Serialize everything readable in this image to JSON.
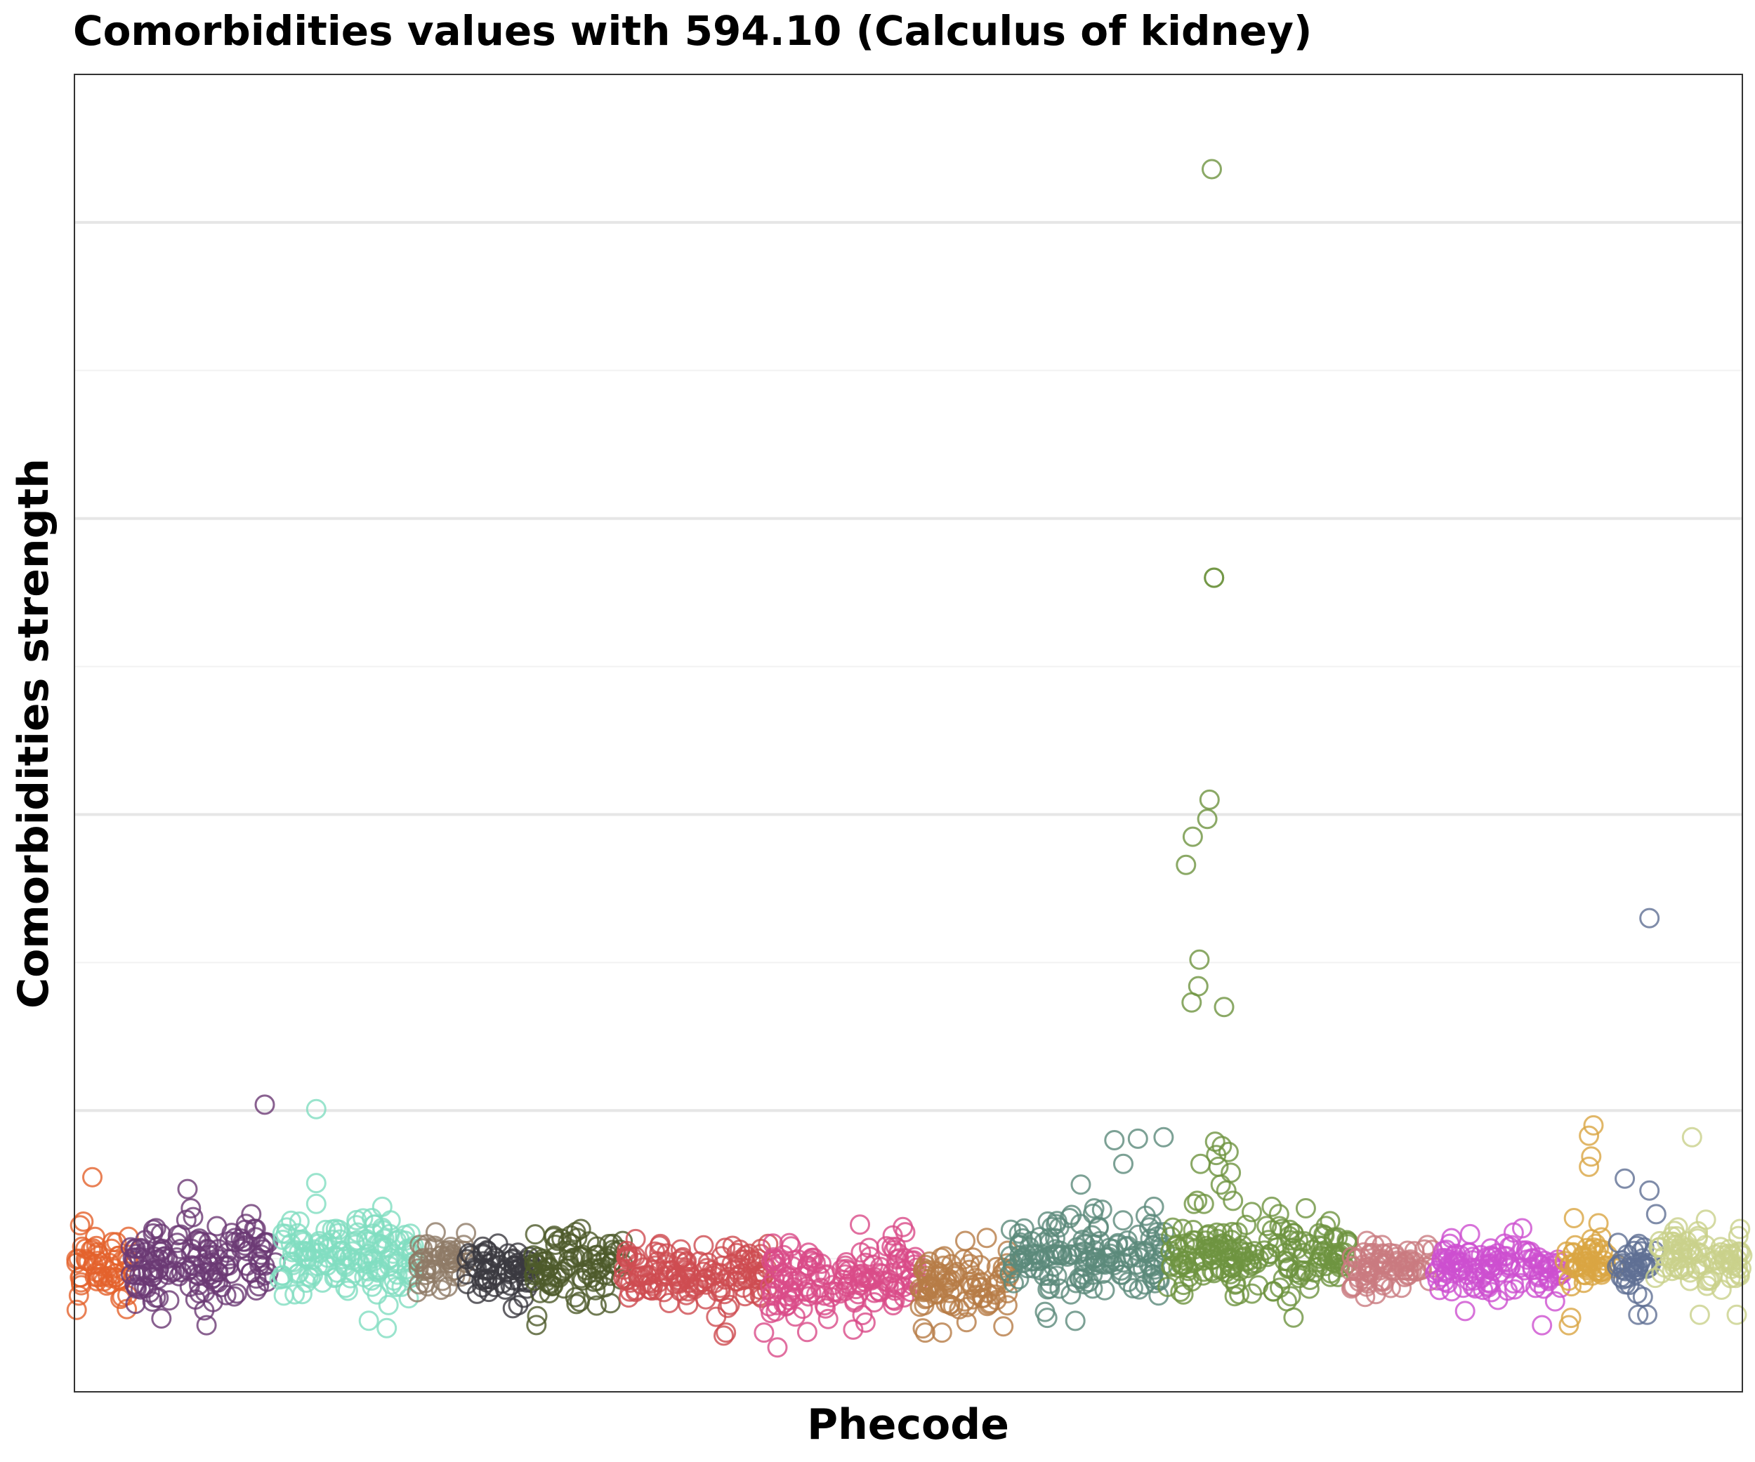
{
  "chart_data": {
    "type": "scatter",
    "title": "Comorbidities values with 594.10 (Calculus of kidney)",
    "xlabel": "Phecode",
    "ylabel": "Comorbidities strength",
    "x_tick_labels": false,
    "y_tick_labels": false,
    "xlim": [
      0,
      1490
    ],
    "ylim": [
      -0.9,
      8.0
    ],
    "grid": {
      "horizontal": true,
      "vertical": false,
      "major_y": [
        1,
        3,
        5,
        7
      ],
      "minor_y": [
        0,
        2,
        4,
        6
      ]
    },
    "legend": "none",
    "marker": "open-circle",
    "groups": [
      {
        "color": "#e4622c",
        "x_range": [
          0,
          50
        ],
        "base": -0.05,
        "spread": 0.11,
        "outliers": [
          [
            16,
            0.55
          ],
          [
            8,
            0.25
          ]
        ]
      },
      {
        "color": "#6b3a74",
        "x_range": [
          50,
          180
        ],
        "base": -0.05,
        "spread": 0.14,
        "outliers": [
          [
            170,
            1.04
          ],
          [
            101,
            0.47
          ],
          [
            104,
            0.34
          ],
          [
            106,
            0.28
          ],
          [
            116,
            -0.35
          ],
          [
            118,
            -0.45
          ],
          [
            158,
            0.3
          ],
          [
            162,
            0.2
          ]
        ]
      },
      {
        "color": "#81ddc1",
        "x_range": [
          180,
          305
        ],
        "base": 0.0,
        "spread": 0.12,
        "outliers": [
          [
            216,
            1.01
          ],
          [
            216,
            0.51
          ],
          [
            216,
            0.37
          ],
          [
            201,
            0.25
          ],
          [
            252,
            0.26
          ],
          [
            268,
            0.23
          ],
          [
            275,
            0.35
          ],
          [
            279,
            -0.47
          ],
          [
            263,
            -0.42
          ],
          [
            187,
            -0.25
          ]
        ]
      },
      {
        "color": "#8e7b66",
        "x_range": [
          305,
          350
        ],
        "base": -0.02,
        "spread": 0.09,
        "outliers": []
      },
      {
        "color": "#3b3940",
        "x_range": [
          350,
          410
        ],
        "base": -0.1,
        "spread": 0.09,
        "outliers": []
      },
      {
        "color": "#4e5a2b",
        "x_range": [
          410,
          490
        ],
        "base": -0.05,
        "spread": 0.12,
        "outliers": [
          [
            448,
            0.18
          ],
          [
            444,
            0.1
          ]
        ]
      },
      {
        "color": "#ce4c51",
        "x_range": [
          490,
          620
        ],
        "base": -0.1,
        "spread": 0.1,
        "outliers": [
          [
            580,
            -0.52
          ],
          [
            582,
            -0.5
          ]
        ]
      },
      {
        "color": "#d94b88",
        "x_range": [
          620,
          755
        ],
        "base": -0.15,
        "spread": 0.14,
        "outliers": [
          [
            628,
            -0.6
          ],
          [
            616,
            -0.5
          ]
        ]
      },
      {
        "color": "#b77c46",
        "x_range": [
          755,
          835
        ],
        "base": -0.18,
        "spread": 0.12,
        "outliers": [
          [
            775,
            -0.5
          ],
          [
            760,
            -0.5
          ],
          [
            815,
            0.14
          ]
        ]
      },
      {
        "color": "#5b8a7b",
        "x_range": [
          835,
          975
        ],
        "base": 0.0,
        "spread": 0.14,
        "outliers": [
          [
            973,
            0.82
          ],
          [
            929,
            0.8
          ],
          [
            950,
            0.81
          ],
          [
            937,
            0.64
          ],
          [
            899,
            0.5
          ],
          [
            918,
            0.33
          ],
          [
            867,
            -0.36
          ],
          [
            869,
            -0.4
          ]
        ]
      },
      {
        "color": "#6e9440",
        "x_range": [
          975,
          1140
        ],
        "base": 0.0,
        "spread": 0.12,
        "outliers": [
          [
            1016,
            7.36
          ],
          [
            1018,
            4.6
          ],
          [
            1018,
            4.6
          ],
          [
            1014,
            3.1
          ],
          [
            1012,
            2.97
          ],
          [
            999,
            2.85
          ],
          [
            993,
            2.66
          ],
          [
            1005,
            2.02
          ],
          [
            1004,
            1.84
          ],
          [
            998,
            1.73
          ],
          [
            1027,
            1.7
          ],
          [
            1019,
            0.79
          ],
          [
            1020,
            0.7
          ],
          [
            1025,
            0.76
          ],
          [
            1031,
            0.72
          ],
          [
            1022,
            0.62
          ],
          [
            1033,
            0.58
          ],
          [
            1006,
            0.64
          ],
          [
            1024,
            0.5
          ],
          [
            1003,
            0.39
          ],
          [
            1035,
            0.39
          ],
          [
            1000,
            0.37
          ],
          [
            1009,
            0.37
          ],
          [
            1100,
            0.34
          ],
          [
            1118,
            0.22
          ],
          [
            990,
            0.2
          ],
          [
            1029,
            0.46
          ]
        ]
      },
      {
        "color": "#c97b7f",
        "x_range": [
          1140,
          1215
        ],
        "base": -0.05,
        "spread": 0.08,
        "outliers": []
      },
      {
        "color": "#cd4fcf",
        "x_range": [
          1215,
          1330
        ],
        "base": -0.05,
        "spread": 0.09,
        "outliers": [
          [
            1311,
            -0.45
          ]
        ]
      },
      {
        "color": "#daa542",
        "x_range": [
          1330,
          1378
        ],
        "base": 0.0,
        "spread": 0.1,
        "outliers": [
          [
            1357,
            0.9
          ],
          [
            1353,
            0.83
          ],
          [
            1355,
            0.69
          ],
          [
            1353,
            0.62
          ],
          [
            1359,
            0.1
          ],
          [
            1337,
            -0.4
          ],
          [
            1335,
            -0.45
          ]
        ]
      },
      {
        "color": "#5f6f93",
        "x_range": [
          1378,
          1412
        ],
        "base": -0.05,
        "spread": 0.09,
        "outliers": [
          [
            1407,
            2.3
          ],
          [
            1385,
            0.54
          ],
          [
            1407,
            0.46
          ],
          [
            1413,
            0.3
          ],
          [
            1397,
            -0.38
          ],
          [
            1405,
            -0.38
          ]
        ]
      },
      {
        "color": "#c9d18b",
        "x_range": [
          1412,
          1490
        ],
        "base": 0.0,
        "spread": 0.1,
        "outliers": [
          [
            1445,
            0.82
          ],
          [
            1452,
            -0.38
          ],
          [
            1485,
            -0.38
          ],
          [
            1488,
            0.2
          ]
        ]
      }
    ]
  }
}
